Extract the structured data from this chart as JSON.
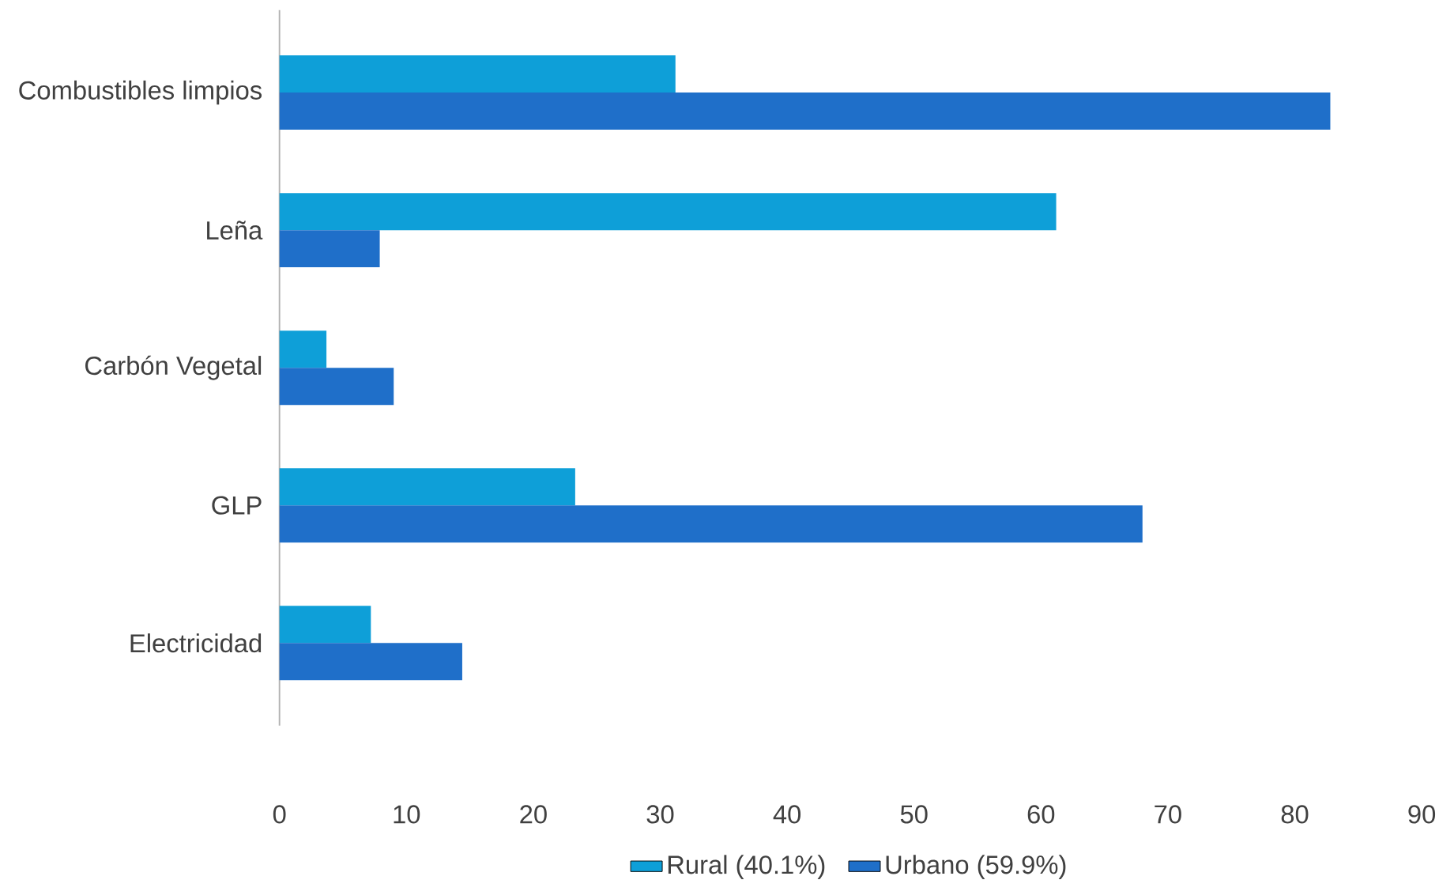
{
  "chart_data": {
    "type": "bar",
    "orientation": "horizontal",
    "categories": [
      "Combustibles limpios",
      "Leña",
      "Carbón Vegetal",
      "GLP",
      "Electricidad"
    ],
    "series": [
      {
        "name": "Rural (40.1%)",
        "color": "#0e9fd8",
        "values": [
          31.2,
          61.2,
          3.7,
          23.3,
          7.2
        ]
      },
      {
        "name": "Urbano (59.9%)",
        "color": "#1f6fc9",
        "values": [
          82.8,
          7.9,
          9.0,
          68.0,
          14.4
        ]
      }
    ],
    "xlim": [
      0,
      90
    ],
    "xticks": [
      0,
      10,
      20,
      30,
      40,
      50,
      60,
      70,
      80,
      90
    ],
    "grid": false,
    "legend": "bottom"
  }
}
